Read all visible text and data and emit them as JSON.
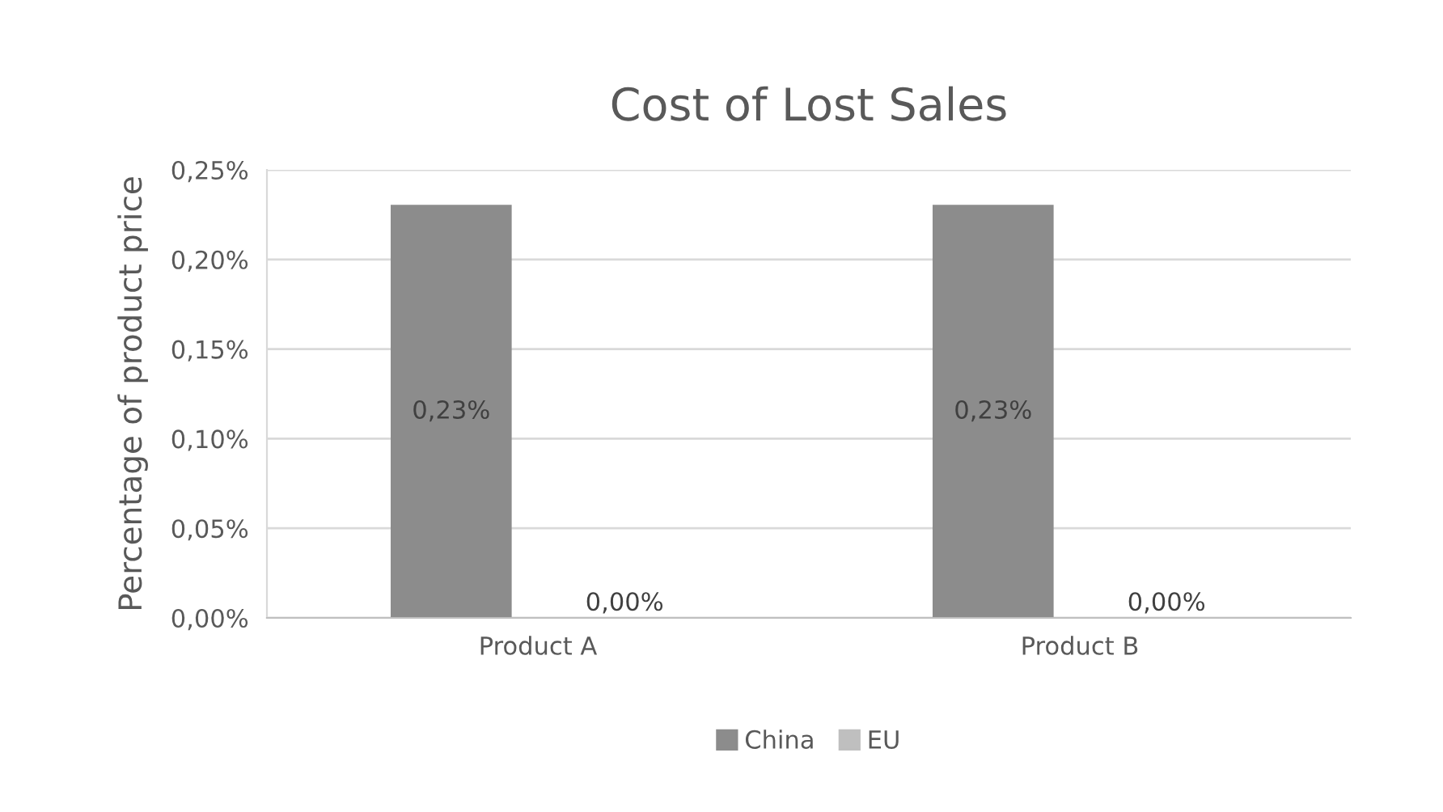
{
  "chart_data": {
    "type": "bar",
    "title": "Cost of Lost Sales",
    "ylabel": "Percentage of product price",
    "categories": [
      "Product A",
      "Product B"
    ],
    "series": [
      {
        "name": "China",
        "color": "#8c8c8c",
        "values": [
          0.23,
          0.23
        ],
        "value_labels": [
          "0,23%",
          "0,23%"
        ]
      },
      {
        "name": "EU",
        "color": "#bfbfbf",
        "values": [
          0,
          0
        ],
        "value_labels": [
          "0,00%",
          "0,00%"
        ]
      }
    ],
    "ylim": [
      0,
      0.25
    ],
    "yticks": [
      {
        "value": 0,
        "label": "0,00%"
      },
      {
        "value": 0.05,
        "label": "0,05%"
      },
      {
        "value": 0.1,
        "label": "0,10%"
      },
      {
        "value": 0.15,
        "label": "0,15%"
      },
      {
        "value": 0.2,
        "label": "0,20%"
      },
      {
        "value": 0.25,
        "label": "0,25%"
      }
    ],
    "grid": "y",
    "legend": "bottom"
  }
}
